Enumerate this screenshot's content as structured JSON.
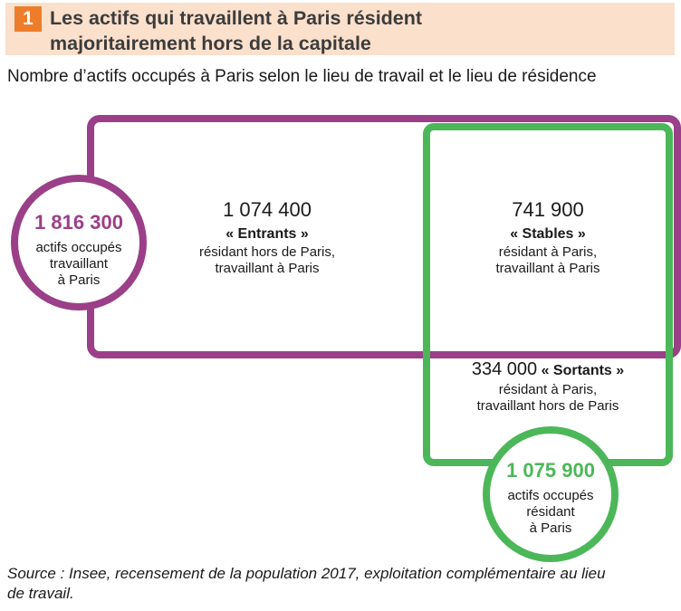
{
  "header": {
    "number": "1",
    "title_line1": "Les actifs qui travaillent à Paris résident",
    "title_line2": "majoritairement hors de la capitale",
    "bg_color": "#fbe0cc",
    "badge_color": "#ee7d2b"
  },
  "subtitle": "Nombre d’actifs occupés à Paris selon le lieu de travail et le lieu de résidence",
  "colors": {
    "purple": "#9b3f88",
    "green": "#4cb758"
  },
  "circle_work": {
    "value": "1 816 300",
    "line1": "actifs occupés",
    "line2": "travaillant",
    "line3": "à Paris"
  },
  "circle_residence": {
    "value": "1 075 900",
    "line1": "actifs occupés",
    "line2": "résidant",
    "line3": "à Paris"
  },
  "entrants": {
    "value": "1 074 400",
    "label": "« Entrants »",
    "line1": "résidant hors de Paris,",
    "line2": "travaillant à Paris"
  },
  "stables": {
    "value": "741 900",
    "label": "« Stables »",
    "line1": "résidant à Paris,",
    "line2": "travaillant à Paris"
  },
  "sortants": {
    "value": "334 000",
    "label": "« Sortants »",
    "line1": "résidant à Paris,",
    "line2": "travaillant hors de Paris"
  },
  "source_line1": "Source : Insee, recensement de la population 2017, exploitation complémentaire au lieu",
  "source_line2": "de travail."
}
